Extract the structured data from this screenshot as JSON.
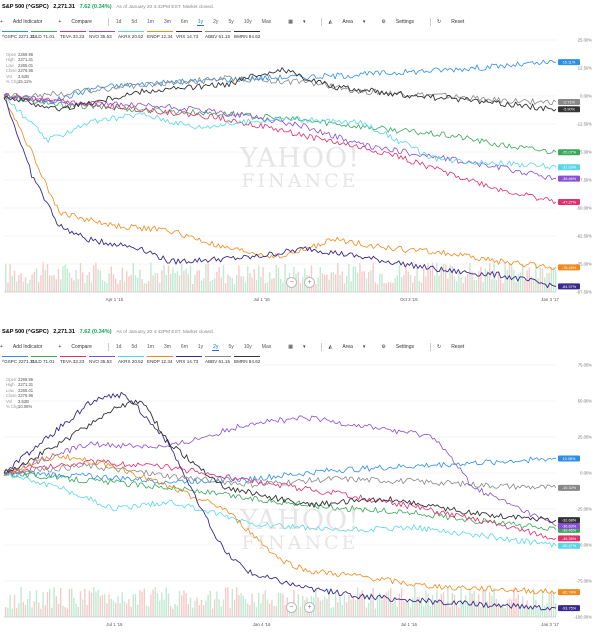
{
  "panels": [
    {
      "header": {
        "symbol": "S&P 500 (^GSPC)",
        "price": "2,271.31",
        "change": "7.62 (0.34%)",
        "asof": "As of January 20 4:42PM EST. Market closed."
      },
      "toolbar": {
        "add_indicator": "Add Indicator",
        "compare": "Compare",
        "ranges": [
          "1d",
          "5d",
          "1m",
          "3m",
          "6m",
          "1y",
          "2y",
          "5y",
          "10y",
          "Max"
        ],
        "active_range": "1y",
        "area": "Area",
        "settings": "Settings",
        "reset": "Reset"
      },
      "legend": [
        "^GSPC 2271.31",
        "GILD 71.01",
        "TEVA 33.23",
        "NVO 35.53",
        "AKRX 20.52",
        "ENDP 12.34",
        "VRX 14.73",
        "ABBV 61.15",
        "BMRN 84.62"
      ],
      "ohlc": {
        "labels": [
          "Open",
          "High",
          "Low",
          "Close",
          "Vol",
          "% Chg"
        ],
        "values": [
          "2269.96",
          "2271.31",
          "2265.01",
          "2276.96",
          "3.52B",
          "15.11%"
        ]
      },
      "watermark": {
        "line1": "YAHOO!",
        "line2": "FINANCE"
      }
    },
    {
      "header": {
        "symbol": "S&P 500 (^GSPC)",
        "price": "2,271.31",
        "change": "7.62 (0.34%)",
        "asof": "As of January 20 4:42PM EST. Market closed."
      },
      "toolbar": {
        "add_indicator": "Add Indicator",
        "compare": "Compare",
        "ranges": [
          "1d",
          "5d",
          "1m",
          "3m",
          "6m",
          "1y",
          "2y",
          "5y",
          "10y",
          "Max"
        ],
        "active_range": "2y",
        "area": "Area",
        "settings": "Settings",
        "reset": "Reset"
      },
      "legend": [
        "^GSPC 2271.31",
        "GILD 71.01",
        "TEVA 33.23",
        "NVO 35.53",
        "AKRX 20.52",
        "ENDP 12.34",
        "VRX 14.73",
        "ABBV 61.15",
        "BMRN 84.62"
      ],
      "ohlc": {
        "labels": [
          "Open",
          "High",
          "Low",
          "Close",
          "Vol",
          "% Chg"
        ],
        "values": [
          "2269.96",
          "2271.31",
          "2265.01",
          "2276.96",
          "3.52B",
          "10.08%"
        ]
      },
      "watermark": {
        "line1": "YAHOO!",
        "line2": "FINANCE"
      }
    }
  ],
  "colors": {
    "GSPC": "#2f8fe8",
    "GILD": "#3aa85a",
    "TEVA": "#e0306e",
    "NVO": "#8a4fd6",
    "AKRX": "#59d6e8",
    "ENDP": "#f08a1d",
    "VRX": "#3b2a8c",
    "ABBV": "#888888",
    "BMRN": "#333333",
    "up": "#1aa35a",
    "accent": "#1d6ee0"
  },
  "chart_data": [
    {
      "type": "line",
      "range": "1y",
      "xlabel": "",
      "ylabel": "",
      "x_ticks": [
        "Apr 1 '16",
        "Jul 1 '16",
        "Oct 3 '16",
        "Jan 3 '17"
      ],
      "y_ticks": [
        "25.00%",
        "12.50%",
        "0.00%",
        "-12.50%",
        "-25.00%",
        "-37.50%",
        "-50.00%",
        "-62.50%",
        "-75.00%",
        "-87.50%"
      ],
      "ylim": [
        -87.5,
        25
      ],
      "series": [
        {
          "name": "^GSPC",
          "end_label": "15.11%",
          "points": [
            [
              0,
              0
            ],
            [
              0.08,
              -3
            ],
            [
              0.17,
              4
            ],
            [
              0.3,
              6
            ],
            [
              0.45,
              8
            ],
            [
              0.6,
              9
            ],
            [
              0.75,
              11
            ],
            [
              0.88,
              13
            ],
            [
              1,
              15.1
            ]
          ]
        },
        {
          "name": "GILD",
          "end_label": "-25.07%",
          "points": [
            [
              0,
              0
            ],
            [
              0.1,
              -4
            ],
            [
              0.25,
              -6
            ],
            [
              0.4,
              -8
            ],
            [
              0.55,
              -11
            ],
            [
              0.7,
              -15
            ],
            [
              0.82,
              -18
            ],
            [
              0.9,
              -22
            ],
            [
              1,
              -25.1
            ]
          ]
        },
        {
          "name": "TEVA",
          "end_label": "-47.27%",
          "points": [
            [
              0,
              0
            ],
            [
              0.1,
              -2
            ],
            [
              0.25,
              -6
            ],
            [
              0.4,
              -10
            ],
            [
              0.55,
              -18
            ],
            [
              0.7,
              -26
            ],
            [
              0.8,
              -34
            ],
            [
              0.9,
              -42
            ],
            [
              1,
              -47.3
            ]
          ]
        },
        {
          "name": "NVO",
          "end_label": "-36.86%",
          "points": [
            [
              0,
              0
            ],
            [
              0.12,
              -3
            ],
            [
              0.3,
              -5
            ],
            [
              0.45,
              -9
            ],
            [
              0.55,
              -14
            ],
            [
              0.65,
              -22
            ],
            [
              0.8,
              -28
            ],
            [
              0.9,
              -32
            ],
            [
              1,
              -36.9
            ]
          ]
        },
        {
          "name": "AKRX",
          "end_label": "-31.83%",
          "points": [
            [
              0,
              0
            ],
            [
              0.08,
              -20
            ],
            [
              0.15,
              -12
            ],
            [
              0.25,
              -8
            ],
            [
              0.35,
              -14
            ],
            [
              0.5,
              -10
            ],
            [
              0.65,
              -12
            ],
            [
              0.78,
              -28
            ],
            [
              0.9,
              -30
            ],
            [
              1,
              -31.8
            ]
          ]
        },
        {
          "name": "ENDP",
          "end_label": "-76.46%",
          "points": [
            [
              0,
              0
            ],
            [
              0.05,
              -25
            ],
            [
              0.1,
              -52
            ],
            [
              0.2,
              -58
            ],
            [
              0.3,
              -60
            ],
            [
              0.4,
              -68
            ],
            [
              0.5,
              -72
            ],
            [
              0.6,
              -64
            ],
            [
              0.7,
              -68
            ],
            [
              0.8,
              -70
            ],
            [
              0.9,
              -74
            ],
            [
              1,
              -76.5
            ]
          ]
        },
        {
          "name": "VRX",
          "end_label": "-84.97%",
          "points": [
            [
              0,
              0
            ],
            [
              0.05,
              -35
            ],
            [
              0.1,
              -58
            ],
            [
              0.15,
              -64
            ],
            [
              0.25,
              -68
            ],
            [
              0.3,
              -74
            ],
            [
              0.45,
              -72
            ],
            [
              0.55,
              -68
            ],
            [
              0.7,
              -74
            ],
            [
              0.8,
              -78
            ],
            [
              0.9,
              -80
            ],
            [
              1,
              -85
            ]
          ]
        },
        {
          "name": "ABBV",
          "end_label": "-2.71%",
          "points": [
            [
              0,
              0
            ],
            [
              0.1,
              1
            ],
            [
              0.25,
              5
            ],
            [
              0.4,
              8
            ],
            [
              0.55,
              6
            ],
            [
              0.65,
              2
            ],
            [
              0.8,
              0
            ],
            [
              0.9,
              -2
            ],
            [
              1,
              -2.7
            ]
          ]
        },
        {
          "name": "BMRN",
          "end_label": "-5.90%",
          "points": [
            [
              0,
              0
            ],
            [
              0.1,
              -6
            ],
            [
              0.25,
              2
            ],
            [
              0.4,
              5
            ],
            [
              0.5,
              12
            ],
            [
              0.6,
              4
            ],
            [
              0.75,
              0
            ],
            [
              0.85,
              -2
            ],
            [
              1,
              -5.9
            ]
          ]
        }
      ]
    },
    {
      "type": "line",
      "range": "2y",
      "xlabel": "",
      "ylabel": "",
      "x_ticks": [
        "Jul 1 '15",
        "Jan 4 '16",
        "Jul 1 '16",
        "Jan 3 '17"
      ],
      "y_ticks": [
        "75.00%",
        "50.00%",
        "25.00%",
        "0.00%",
        "-25.00%",
        "-50.00%",
        "-75.00%",
        "-100.00%"
      ],
      "ylim": [
        -100,
        75
      ],
      "series": [
        {
          "name": "^GSPC",
          "end_label": "10.08%",
          "points": [
            [
              0,
              0
            ],
            [
              0.15,
              -2
            ],
            [
              0.3,
              -6
            ],
            [
              0.45,
              -4
            ],
            [
              0.6,
              2
            ],
            [
              0.75,
              5
            ],
            [
              0.9,
              8
            ],
            [
              1,
              10.1
            ]
          ]
        },
        {
          "name": "GILD",
          "end_label": "-39.46%",
          "points": [
            [
              0,
              0
            ],
            [
              0.15,
              -5
            ],
            [
              0.3,
              -10
            ],
            [
              0.45,
              -18
            ],
            [
              0.6,
              -24
            ],
            [
              0.75,
              -28
            ],
            [
              0.9,
              -35
            ],
            [
              1,
              -39.5
            ]
          ]
        },
        {
          "name": "TEVA",
          "end_label": "-45.35%",
          "points": [
            [
              0,
              0
            ],
            [
              0.15,
              8
            ],
            [
              0.3,
              4
            ],
            [
              0.45,
              -6
            ],
            [
              0.6,
              -14
            ],
            [
              0.75,
              -24
            ],
            [
              0.9,
              -36
            ],
            [
              1,
              -45.4
            ]
          ]
        },
        {
          "name": "NVO",
          "end_label": "-36.83%",
          "points": [
            [
              0,
              0
            ],
            [
              0.15,
              20
            ],
            [
              0.3,
              18
            ],
            [
              0.45,
              35
            ],
            [
              0.55,
              38
            ],
            [
              0.7,
              30
            ],
            [
              0.78,
              25
            ],
            [
              0.85,
              -10
            ],
            [
              1,
              -36.8
            ]
          ]
        },
        {
          "name": "AKRX",
          "end_label": "-50.47%",
          "points": [
            [
              0,
              0
            ],
            [
              0.1,
              -10
            ],
            [
              0.2,
              -25
            ],
            [
              0.3,
              -20
            ],
            [
              0.45,
              -35
            ],
            [
              0.6,
              -40
            ],
            [
              0.75,
              -38
            ],
            [
              0.9,
              -45
            ],
            [
              1,
              -50.5
            ]
          ]
        },
        {
          "name": "ENDP",
          "end_label": "-82.74%",
          "points": [
            [
              0,
              0
            ],
            [
              0.1,
              12
            ],
            [
              0.2,
              5
            ],
            [
              0.3,
              -10
            ],
            [
              0.4,
              -25
            ],
            [
              0.5,
              -60
            ],
            [
              0.55,
              -68
            ],
            [
              0.65,
              -72
            ],
            [
              0.75,
              -78
            ],
            [
              0.85,
              -80
            ],
            [
              1,
              -82.7
            ]
          ]
        },
        {
          "name": "VRX",
          "end_label": "-93.75%",
          "points": [
            [
              0,
              0
            ],
            [
              0.08,
              25
            ],
            [
              0.16,
              50
            ],
            [
              0.22,
              55
            ],
            [
              0.3,
              20
            ],
            [
              0.35,
              -20
            ],
            [
              0.4,
              -55
            ],
            [
              0.45,
              -70
            ],
            [
              0.55,
              -80
            ],
            [
              0.65,
              -86
            ],
            [
              0.8,
              -90
            ],
            [
              1,
              -93.8
            ]
          ]
        },
        {
          "name": "ABBV",
          "end_label": "-10.32%",
          "points": [
            [
              0,
              0
            ],
            [
              0.15,
              5
            ],
            [
              0.3,
              -2
            ],
            [
              0.45,
              -8
            ],
            [
              0.6,
              -4
            ],
            [
              0.75,
              -6
            ],
            [
              0.9,
              -9
            ],
            [
              1,
              -10.3
            ]
          ]
        },
        {
          "name": "BMRN",
          "end_label": "-32.68%",
          "points": [
            [
              0,
              0
            ],
            [
              0.1,
              20
            ],
            [
              0.2,
              45
            ],
            [
              0.25,
              50
            ],
            [
              0.3,
              20
            ],
            [
              0.4,
              -10
            ],
            [
              0.55,
              -22
            ],
            [
              0.7,
              -18
            ],
            [
              0.85,
              -28
            ],
            [
              1,
              -32.7
            ]
          ]
        }
      ]
    }
  ]
}
